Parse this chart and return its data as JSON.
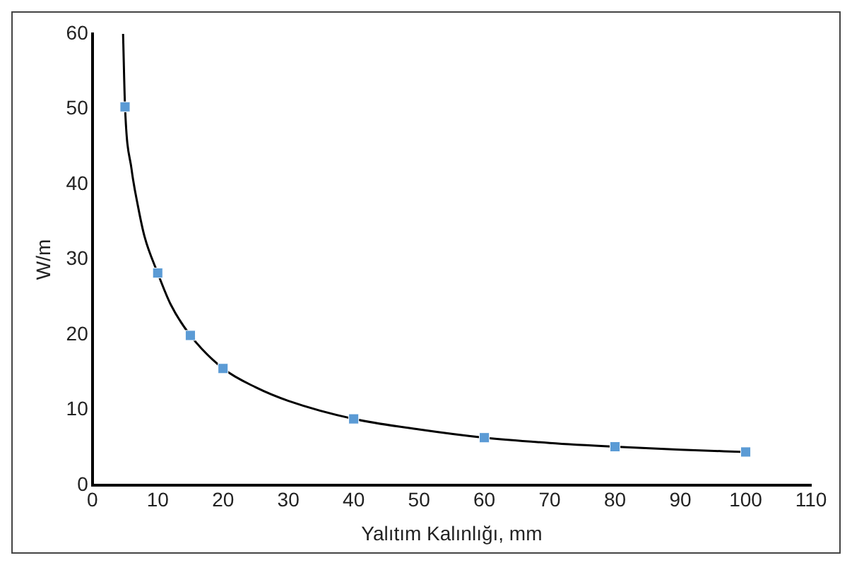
{
  "chart_data": {
    "type": "scatter",
    "xlabel": "Yalıtım Kalınlığı, mm",
    "ylabel": "W/m",
    "xlim": [
      0,
      110
    ],
    "xticks": [
      0,
      10,
      20,
      30,
      40,
      50,
      60,
      70,
      80,
      90,
      100,
      110
    ],
    "ylim": [
      0,
      60
    ],
    "yticks": [
      0,
      10,
      20,
      30,
      40,
      50,
      60
    ],
    "grid": false,
    "legend": false,
    "marker": "square",
    "series": [
      {
        "color": "#5b9bd5",
        "x": [
          5,
          10,
          15,
          20,
          40,
          60,
          80,
          100
        ],
        "values": [
          50.3,
          28.2,
          19.9,
          15.5,
          8.8,
          6.3,
          5.1,
          4.4
        ]
      },
      {
        "type": "line",
        "color": "#000000",
        "marker": "none",
        "line_style": "solid",
        "x": [
          4.7,
          5,
          6,
          7,
          8,
          10,
          12,
          15,
          20,
          25,
          30,
          40,
          50,
          60,
          70,
          80,
          90,
          100
        ],
        "values": [
          60,
          50.3,
          42,
          37,
          33,
          28.2,
          24,
          19.9,
          15.5,
          13,
          11.2,
          8.8,
          7.4,
          6.3,
          5.6,
          5.1,
          4.7,
          4.4
        ]
      }
    ]
  }
}
